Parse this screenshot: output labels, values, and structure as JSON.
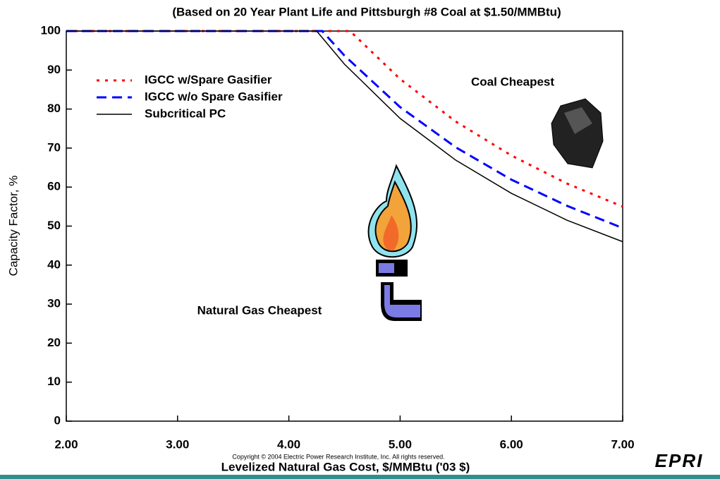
{
  "chart_data": {
    "type": "line",
    "title": "(Based on 20 Year Plant Life and Pittsburgh #8 Coal at $1.50/MMBtu)",
    "x_label": "Levelized Natural Gas Cost, $/MMBtu ('03 $)",
    "y_label": "Capacity Factor, %",
    "annotations": [
      "Coal Cheapest",
      "Natural Gas Cheapest"
    ],
    "copyright": "Copyright © 2004 Electric Power Research Institute, Inc. All rights reserved.",
    "logo": "EPRI",
    "xlim": [
      2,
      7
    ],
    "ylim": [
      0,
      100
    ],
    "xticks": [
      {
        "value": 2,
        "label": "2.00"
      },
      {
        "value": 3,
        "label": "3.00"
      },
      {
        "value": 4,
        "label": "4.00"
      },
      {
        "value": 5,
        "label": "5.00"
      },
      {
        "value": 6,
        "label": "6.00"
      },
      {
        "value": 7,
        "label": "7.00"
      }
    ],
    "yticks": [
      0,
      10,
      20,
      30,
      40,
      50,
      60,
      70,
      80,
      90,
      100
    ],
    "series": [
      {
        "name": "IGCC w/Spare Gasifier",
        "color": "#ff0000",
        "dash": "dotted",
        "x": [
          2,
          3,
          4,
          4.55,
          5,
          5.5,
          6,
          6.5,
          7
        ],
        "values": [
          100,
          100,
          100,
          100,
          87.7,
          76.8,
          68.1,
          60.9,
          55
        ]
      },
      {
        "name": "IGCC w/o Spare Gasifier",
        "color": "#0000ff",
        "dash": "dashed",
        "x": [
          2,
          3,
          4,
          4.3,
          4.5,
          5,
          5.5,
          6,
          6.5,
          7
        ],
        "values": [
          100,
          100,
          100,
          100,
          93.7,
          80.5,
          70.2,
          61.9,
          55.2,
          49.5
        ]
      },
      {
        "name": "Subcritical PC",
        "color": "#000000",
        "dash": "solid",
        "x": [
          2,
          3,
          4,
          4.25,
          4.5,
          5,
          5.5,
          6,
          6.5,
          7
        ],
        "values": [
          100,
          100,
          100,
          100,
          91.5,
          77.6,
          66.9,
          58.4,
          51.5,
          46
        ]
      }
    ]
  }
}
